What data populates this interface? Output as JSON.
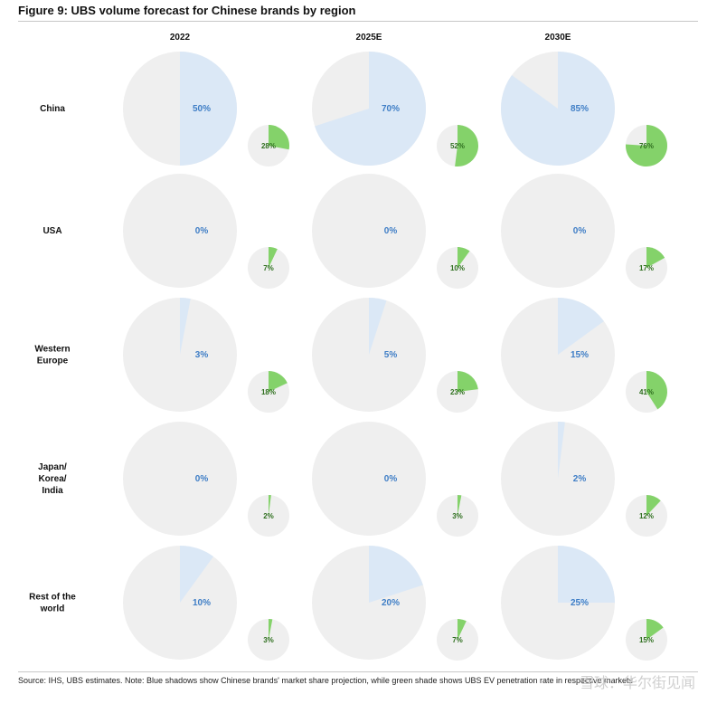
{
  "figure_title": "Figure 9: UBS volume forecast for Chinese brands by region",
  "source_note": "Source: IHS, UBS estimates. Note: Blue shadows show Chinese brands' market share projection, while green shade shows UBS EV penetration rate in respective markets",
  "watermark": "雪球：华尔街见闻",
  "colors": {
    "big_bg": "#efefef",
    "big_fill": "#dbe8f6",
    "big_label": "#3f7ec6",
    "small_bg": "#efefef",
    "small_fill": "#84d26a",
    "small_label": "#2f6f1f"
  },
  "chart_data": {
    "type": "pie",
    "title": "Figure 9: UBS volume forecast for Chinese brands by region",
    "columns": [
      "2022",
      "2025E",
      "2030E"
    ],
    "rows": [
      {
        "label_lines": [
          "China"
        ],
        "market_share": [
          50,
          70,
          85
        ],
        "ev_penetration": [
          28,
          52,
          76
        ]
      },
      {
        "label_lines": [
          "USA"
        ],
        "market_share": [
          0,
          0,
          0
        ],
        "ev_penetration": [
          7,
          10,
          17
        ]
      },
      {
        "label_lines": [
          "Western",
          "Europe"
        ],
        "market_share": [
          3,
          5,
          15
        ],
        "ev_penetration": [
          18,
          23,
          41
        ]
      },
      {
        "label_lines": [
          "Japan/",
          "Korea/",
          "India"
        ],
        "market_share": [
          0,
          0,
          2
        ],
        "ev_penetration": [
          2,
          3,
          12
        ]
      },
      {
        "label_lines": [
          "Rest of the",
          "world"
        ],
        "market_share": [
          10,
          20,
          25
        ],
        "ev_penetration": [
          3,
          7,
          15
        ]
      }
    ]
  }
}
